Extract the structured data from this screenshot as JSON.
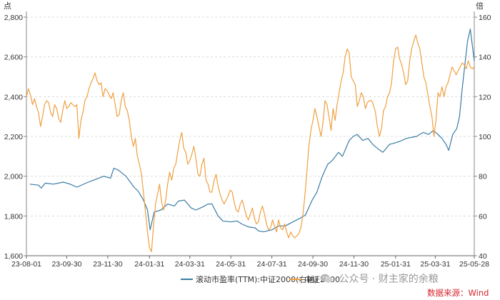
{
  "chart_data": {
    "type": "line",
    "left_axis_unit": "点",
    "right_axis_unit": "倍",
    "y_left_lim": [
      1600,
      2800
    ],
    "y_left_ticks": [
      1600,
      1800,
      2000,
      2200,
      2400,
      2600,
      2800
    ],
    "y_left_tick_labels": [
      "1,600",
      "1,800",
      "2,000",
      "2,200",
      "2,400",
      "2,600",
      "2,800"
    ],
    "y_right_lim": [
      40,
      160
    ],
    "y_right_ticks": [
      40,
      60,
      80,
      100,
      120,
      140,
      160
    ],
    "x_tick_labels": [
      "23-08-01",
      "23-09-30",
      "23-11-30",
      "24-01-31",
      "24-03-31",
      "24-05-31",
      "24-07-31",
      "24-09-30",
      "24-11-30",
      "25-01-31",
      "25-03-31",
      "25-05-28"
    ],
    "x_range_days": [
      0,
      666
    ],
    "x_tick_days": [
      0,
      60,
      121,
      183,
      243,
      304,
      365,
      426,
      487,
      549,
      608,
      666
    ],
    "grid": "horizontal dashed",
    "legend_position": "bottom-center",
    "series": [
      {
        "name": "滚动市盈率(TTM):中证2000(右轴)",
        "axis": "right",
        "color": "#3a7ca5",
        "points": [
          [
            5,
            76
          ],
          [
            18,
            75.5
          ],
          [
            22,
            74
          ],
          [
            28,
            76.5
          ],
          [
            40,
            76
          ],
          [
            55,
            77
          ],
          [
            65,
            76
          ],
          [
            75,
            74.5
          ],
          [
            92,
            77
          ],
          [
            100,
            78
          ],
          [
            115,
            80
          ],
          [
            125,
            79
          ],
          [
            130,
            84
          ],
          [
            137,
            83
          ],
          [
            148,
            80
          ],
          [
            160,
            74.5
          ],
          [
            166,
            72.5
          ],
          [
            174,
            68
          ],
          [
            180,
            63
          ],
          [
            184,
            53
          ],
          [
            190,
            62
          ],
          [
            200,
            63
          ],
          [
            210,
            66
          ],
          [
            220,
            65
          ],
          [
            226,
            67.5
          ],
          [
            235,
            68
          ],
          [
            245,
            64
          ],
          [
            252,
            63
          ],
          [
            262,
            64.5
          ],
          [
            270,
            66
          ],
          [
            276,
            66
          ],
          [
            285,
            60
          ],
          [
            292,
            57.5
          ],
          [
            304,
            57
          ],
          [
            313,
            57.5
          ],
          [
            320,
            56
          ],
          [
            330,
            54.5
          ],
          [
            340,
            54
          ],
          [
            345,
            52.5
          ],
          [
            352,
            52
          ],
          [
            365,
            53
          ],
          [
            375,
            55
          ],
          [
            385,
            55
          ],
          [
            396,
            57
          ],
          [
            408,
            59
          ],
          [
            415,
            60.5
          ],
          [
            425,
            68
          ],
          [
            432,
            72
          ],
          [
            440,
            80
          ],
          [
            448,
            86
          ],
          [
            455,
            88
          ],
          [
            464,
            92
          ],
          [
            470,
            90
          ],
          [
            480,
            98
          ],
          [
            486,
            100
          ],
          [
            492,
            101
          ],
          [
            500,
            98
          ],
          [
            508,
            99
          ],
          [
            515,
            96
          ],
          [
            522,
            94
          ],
          [
            530,
            92
          ],
          [
            540,
            96
          ],
          [
            546,
            96.5
          ],
          [
            555,
            97.5
          ],
          [
            565,
            99
          ],
          [
            572,
            99.5
          ],
          [
            580,
            100
          ],
          [
            590,
            102
          ],
          [
            598,
            101
          ],
          [
            605,
            103
          ],
          [
            612,
            101
          ],
          [
            618,
            99
          ],
          [
            624,
            96
          ],
          [
            628,
            93
          ],
          [
            634,
            101
          ],
          [
            640,
            104
          ],
          [
            644,
            110
          ],
          [
            648,
            124
          ],
          [
            652,
            136
          ],
          [
            656,
            148
          ],
          [
            660,
            154
          ],
          [
            666,
            138
          ]
        ]
      },
      {
        "name": "中证2000",
        "axis": "left",
        "color": "#f0a040",
        "points": [
          [
            0,
            2400
          ],
          [
            3,
            2440
          ],
          [
            6,
            2410
          ],
          [
            9,
            2360
          ],
          [
            12,
            2390
          ],
          [
            15,
            2350
          ],
          [
            18,
            2320
          ],
          [
            21,
            2250
          ],
          [
            24,
            2300
          ],
          [
            27,
            2360
          ],
          [
            30,
            2380
          ],
          [
            33,
            2370
          ],
          [
            36,
            2320
          ],
          [
            39,
            2300
          ],
          [
            42,
            2360
          ],
          [
            45,
            2340
          ],
          [
            48,
            2290
          ],
          [
            51,
            2270
          ],
          [
            54,
            2330
          ],
          [
            57,
            2380
          ],
          [
            60,
            2340
          ],
          [
            63,
            2350
          ],
          [
            66,
            2370
          ],
          [
            69,
            2360
          ],
          [
            72,
            2350
          ],
          [
            75,
            2360
          ],
          [
            78,
            2190
          ],
          [
            81,
            2280
          ],
          [
            84,
            2320
          ],
          [
            87,
            2380
          ],
          [
            90,
            2400
          ],
          [
            93,
            2440
          ],
          [
            96,
            2470
          ],
          [
            99,
            2490
          ],
          [
            102,
            2520
          ],
          [
            105,
            2480
          ],
          [
            108,
            2460
          ],
          [
            111,
            2470
          ],
          [
            114,
            2400
          ],
          [
            117,
            2440
          ],
          [
            120,
            2430
          ],
          [
            123,
            2410
          ],
          [
            126,
            2390
          ],
          [
            129,
            2420
          ],
          [
            132,
            2360
          ],
          [
            135,
            2300
          ],
          [
            138,
            2310
          ],
          [
            141,
            2380
          ],
          [
            144,
            2420
          ],
          [
            147,
            2350
          ],
          [
            150,
            2330
          ],
          [
            153,
            2280
          ],
          [
            156,
            2200
          ],
          [
            159,
            2150
          ],
          [
            162,
            2190
          ],
          [
            165,
            2100
          ],
          [
            168,
            2060
          ],
          [
            171,
            2010
          ],
          [
            174,
            1920
          ],
          [
            177,
            1820
          ],
          [
            180,
            1720
          ],
          [
            183,
            1640
          ],
          [
            186,
            1620
          ],
          [
            189,
            1750
          ],
          [
            192,
            1860
          ],
          [
            195,
            1910
          ],
          [
            198,
            1960
          ],
          [
            201,
            1870
          ],
          [
            204,
            1830
          ],
          [
            207,
            1880
          ],
          [
            210,
            1960
          ],
          [
            213,
            2020
          ],
          [
            216,
            1980
          ],
          [
            219,
            2040
          ],
          [
            222,
            2060
          ],
          [
            225,
            2120
          ],
          [
            228,
            2180
          ],
          [
            231,
            2220
          ],
          [
            234,
            2140
          ],
          [
            237,
            2120
          ],
          [
            240,
            2060
          ],
          [
            243,
            2080
          ],
          [
            246,
            2110
          ],
          [
            249,
            2150
          ],
          [
            252,
            2090
          ],
          [
            255,
            2010
          ],
          [
            258,
            2000
          ],
          [
            261,
            2060
          ],
          [
            264,
            2090
          ],
          [
            267,
            1980
          ],
          [
            270,
            1960
          ],
          [
            273,
            1920
          ],
          [
            276,
            1920
          ],
          [
            279,
            1980
          ],
          [
            282,
            2010
          ],
          [
            285,
            1950
          ],
          [
            288,
            1910
          ],
          [
            291,
            1880
          ],
          [
            294,
            1860
          ],
          [
            297,
            1880
          ],
          [
            300,
            1900
          ],
          [
            303,
            1930
          ],
          [
            306,
            1920
          ],
          [
            309,
            1870
          ],
          [
            312,
            1830
          ],
          [
            315,
            1820
          ],
          [
            318,
            1860
          ],
          [
            321,
            1880
          ],
          [
            324,
            1840
          ],
          [
            327,
            1800
          ],
          [
            330,
            1780
          ],
          [
            333,
            1810
          ],
          [
            336,
            1840
          ],
          [
            339,
            1790
          ],
          [
            342,
            1760
          ],
          [
            345,
            1770
          ],
          [
            348,
            1820
          ],
          [
            351,
            1850
          ],
          [
            354,
            1810
          ],
          [
            357,
            1760
          ],
          [
            360,
            1730
          ],
          [
            363,
            1740
          ],
          [
            366,
            1780
          ],
          [
            369,
            1750
          ],
          [
            372,
            1720
          ],
          [
            375,
            1780
          ],
          [
            378,
            1740
          ],
          [
            381,
            1730
          ],
          [
            384,
            1760
          ],
          [
            387,
            1720
          ],
          [
            390,
            1690
          ],
          [
            393,
            1720
          ],
          [
            396,
            1700
          ],
          [
            399,
            1690
          ],
          [
            402,
            1700
          ],
          [
            405,
            1710
          ],
          [
            408,
            1740
          ],
          [
            411,
            1800
          ],
          [
            414,
            1900
          ],
          [
            417,
            2020
          ],
          [
            420,
            2150
          ],
          [
            423,
            2230
          ],
          [
            426,
            2280
          ],
          [
            429,
            2340
          ],
          [
            432,
            2300
          ],
          [
            435,
            2250
          ],
          [
            438,
            2200
          ],
          [
            441,
            2270
          ],
          [
            444,
            2380
          ],
          [
            447,
            2360
          ],
          [
            450,
            2300
          ],
          [
            453,
            2230
          ],
          [
            456,
            2340
          ],
          [
            459,
            2280
          ],
          [
            462,
            2360
          ],
          [
            465,
            2420
          ],
          [
            468,
            2480
          ],
          [
            471,
            2520
          ],
          [
            474,
            2600
          ],
          [
            477,
            2640
          ],
          [
            480,
            2620
          ],
          [
            483,
            2500
          ],
          [
            486,
            2480
          ],
          [
            489,
            2460
          ],
          [
            492,
            2350
          ],
          [
            495,
            2380
          ],
          [
            498,
            2420
          ],
          [
            501,
            2400
          ],
          [
            504,
            2340
          ],
          [
            507,
            2370
          ],
          [
            510,
            2380
          ],
          [
            513,
            2380
          ],
          [
            516,
            2360
          ],
          [
            519,
            2320
          ],
          [
            522,
            2250
          ],
          [
            525,
            2200
          ],
          [
            528,
            2240
          ],
          [
            531,
            2330
          ],
          [
            534,
            2350
          ],
          [
            537,
            2400
          ],
          [
            540,
            2420
          ],
          [
            543,
            2470
          ],
          [
            546,
            2580
          ],
          [
            549,
            2640
          ],
          [
            552,
            2650
          ],
          [
            555,
            2590
          ],
          [
            558,
            2560
          ],
          [
            561,
            2520
          ],
          [
            564,
            2460
          ],
          [
            567,
            2480
          ],
          [
            570,
            2580
          ],
          [
            573,
            2640
          ],
          [
            576,
            2680
          ],
          [
            579,
            2710
          ],
          [
            582,
            2670
          ],
          [
            585,
            2640
          ],
          [
            588,
            2570
          ],
          [
            591,
            2500
          ],
          [
            594,
            2470
          ],
          [
            597,
            2410
          ],
          [
            600,
            2350
          ],
          [
            603,
            2300
          ],
          [
            606,
            2200
          ],
          [
            609,
            2280
          ],
          [
            612,
            2420
          ],
          [
            615,
            2400
          ],
          [
            618,
            2450
          ],
          [
            621,
            2400
          ],
          [
            624,
            2450
          ],
          [
            627,
            2470
          ],
          [
            630,
            2510
          ],
          [
            633,
            2550
          ],
          [
            636,
            2530
          ],
          [
            639,
            2510
          ],
          [
            642,
            2530
          ],
          [
            645,
            2550
          ],
          [
            648,
            2570
          ],
          [
            651,
            2560
          ],
          [
            654,
            2540
          ],
          [
            657,
            2580
          ],
          [
            660,
            2550
          ],
          [
            663,
            2540
          ],
          [
            666,
            2550
          ]
        ]
      }
    ]
  },
  "watermark": {
    "text": "公众号 · 财主家的余粮"
  },
  "source_note": "数据来源：Wind"
}
